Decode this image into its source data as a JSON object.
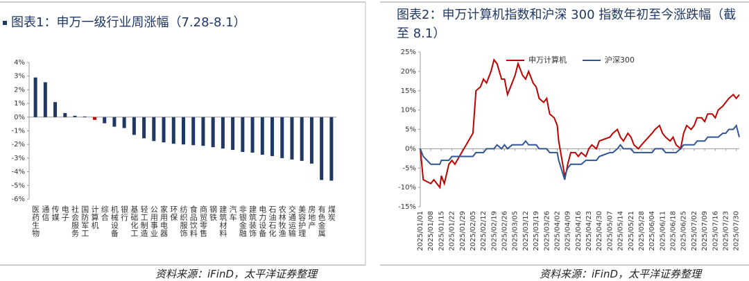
{
  "chart_data": [
    {
      "type": "bar",
      "title": "图表1：申万一级行业周涨幅（7.28-8.1）",
      "source": "资料来源：iFinD，太平洋证券整理",
      "categories": [
        "医药生物",
        "通信",
        "传媒",
        "电子",
        "社会服务",
        "国防军工",
        "计算机",
        "综合",
        "机械设备",
        "银行",
        "基础化工",
        "轻工制造",
        "公用事业",
        "家用电器",
        "环保",
        "纺织服饰",
        "食品饮料",
        "商贸零售",
        "钢铁",
        "建筑材料",
        "汽车",
        "非银金融",
        "建筑装饰",
        "电力设备",
        "石油石化",
        "农林牧渔",
        "交通运输",
        "美容护理",
        "房地产",
        "有色金属",
        "煤炭"
      ],
      "values": [
        2.9,
        2.55,
        1.1,
        0.3,
        0.1,
        0.05,
        -0.2,
        -0.45,
        -0.7,
        -0.8,
        -1.3,
        -1.55,
        -1.75,
        -1.85,
        -1.95,
        -2.0,
        -2.05,
        -2.1,
        -2.2,
        -2.3,
        -2.4,
        -2.55,
        -2.6,
        -2.75,
        -2.85,
        -3.0,
        -3.1,
        -3.2,
        -3.4,
        -4.6,
        -4.65
      ],
      "colors": [
        "#1f3864",
        "#1f3864",
        "#1f3864",
        "#1f3864",
        "#1f3864",
        "#1f3864",
        "#c00000",
        "#1f3864",
        "#1f3864",
        "#1f3864",
        "#1f3864",
        "#1f3864",
        "#1f3864",
        "#1f3864",
        "#1f3864",
        "#1f3864",
        "#1f3864",
        "#1f3864",
        "#1f3864",
        "#1f3864",
        "#1f3864",
        "#1f3864",
        "#1f3864",
        "#1f3864",
        "#1f3864",
        "#1f3864",
        "#1f3864",
        "#1f3864",
        "#1f3864",
        "#1f3864",
        "#1f3864"
      ],
      "ylim": [
        -6,
        4
      ],
      "yticks": [
        {
          "value": 4,
          "label": "4%"
        },
        {
          "value": 3,
          "label": "3%"
        },
        {
          "value": 2,
          "label": "2%"
        },
        {
          "value": 1,
          "label": "1%"
        },
        {
          "value": 0,
          "label": "0%"
        },
        {
          "value": -1,
          "label": "-1%"
        },
        {
          "value": -2,
          "label": "-2%"
        },
        {
          "value": -3,
          "label": "-3%"
        },
        {
          "value": -4,
          "label": "-4%"
        },
        {
          "value": -5,
          "label": "-5%"
        },
        {
          "value": -6,
          "label": "-6%"
        }
      ]
    },
    {
      "type": "line",
      "title": "图表2：申万计算机指数和沪深 300 指数年初至今涨跌幅（截至 8.1）",
      "source": "资料来源：iFinD，太平洋证券整理",
      "x": [
        "2025/01/01",
        "2025/01/03",
        "2025/01/08",
        "2025/01/10",
        "2025/01/14",
        "2025/01/15",
        "2025/01/17",
        "2025/01/20",
        "2025/01/22",
        "2025/01/24",
        "2025/01/27",
        "2025/02/05",
        "2025/02/07",
        "2025/02/10",
        "2025/02/12",
        "2025/02/14",
        "2025/02/17",
        "2025/02/19",
        "2025/02/21",
        "2025/02/24",
        "2025/02/26",
        "2025/02/28",
        "2025/03/03",
        "2025/03/05",
        "2025/03/07",
        "2025/03/10",
        "2025/03/12",
        "2025/03/14",
        "2025/03/17",
        "2025/03/19",
        "2025/03/21",
        "2025/03/24",
        "2025/03/26",
        "2025/03/28",
        "2025/03/31",
        "2025/04/02",
        "2025/04/03",
        "2025/04/07",
        "2025/04/08",
        "2025/04/09",
        "2025/04/11",
        "2025/04/14",
        "2025/04/16",
        "2025/04/18",
        "2025/04/21",
        "2025/04/23",
        "2025/04/25",
        "2025/04/28",
        "2025/04/30",
        "2025/05/07",
        "2025/05/09",
        "2025/05/12",
        "2025/05/14",
        "2025/05/16",
        "2025/05/19",
        "2025/05/21",
        "2025/05/23",
        "2025/05/26",
        "2025/05/28",
        "2025/06/04",
        "2025/06/06",
        "2025/06/09",
        "2025/06/11",
        "2025/06/13",
        "2025/06/16",
        "2025/06/18",
        "2025/06/20",
        "2025/06/23",
        "2025/06/25",
        "2025/06/27",
        "2025/06/30",
        "2025/07/02",
        "2025/07/04",
        "2025/07/07",
        "2025/07/09",
        "2025/07/11",
        "2025/07/14",
        "2025/07/16",
        "2025/07/18",
        "2025/07/21",
        "2025/07/23",
        "2025/07/25",
        "2025/07/28",
        "2025/07/30",
        "2025/08/01"
      ],
      "series": [
        {
          "name": "申万计算机",
          "color": "#c00000",
          "values": [
            0,
            -8,
            -9,
            -8,
            -10,
            -7,
            -9,
            -4,
            -3,
            -4,
            -2,
            4,
            15,
            16,
            18,
            17,
            20,
            23,
            22,
            18,
            18,
            14,
            17,
            19,
            22,
            19,
            18,
            20,
            17,
            16,
            13,
            12,
            13,
            9,
            8,
            6,
            2,
            -7,
            -6,
            -4,
            -1,
            -1,
            -2,
            -1,
            -2,
            0,
            1,
            0,
            2,
            3,
            4,
            5,
            3,
            2,
            4,
            3,
            1,
            0,
            1,
            4,
            5,
            6,
            4,
            3,
            2,
            3,
            1,
            0,
            4,
            6,
            5,
            6,
            8,
            8,
            7,
            9,
            9,
            8,
            10,
            11,
            12,
            13,
            14,
            13,
            14
          ]
        },
        {
          "name": "沪深300",
          "color": "#2f5597",
          "values": [
            0,
            -2,
            -4,
            -4,
            -4,
            -3,
            -3,
            -3,
            -2,
            -2,
            -2,
            -2,
            -1,
            -1,
            -1,
            0,
            0,
            0,
            1,
            0,
            1,
            0,
            1,
            1,
            1,
            1,
            2,
            1,
            1,
            1,
            0,
            0,
            0,
            -1,
            -1,
            -1,
            -3,
            -8,
            -6,
            -5,
            -4,
            -4,
            -4,
            -4,
            -3,
            -3,
            -3,
            -3,
            -2,
            -1,
            -1,
            0,
            1,
            0,
            0,
            0,
            -1,
            -1,
            -1,
            -1,
            0,
            0,
            0,
            -1,
            -1,
            -1,
            -1,
            0,
            1,
            1,
            1,
            1,
            2,
            2,
            2,
            3,
            3,
            3,
            3,
            4,
            4,
            5,
            5,
            6,
            3
          ]
        }
      ],
      "xlim": [
        "2025/01/01",
        "2025/08/01"
      ],
      "xticks": [
        "2025/01/01",
        "2025/01/08",
        "2025/01/15",
        "2025/01/22",
        "2025/01/29",
        "2025/02/05",
        "2025/02/12",
        "2025/02/19",
        "2025/02/26",
        "2025/03/05",
        "2025/03/12",
        "2025/03/19",
        "2025/03/26",
        "2025/04/02",
        "2025/04/09",
        "2025/04/16",
        "2025/04/23",
        "2025/04/30",
        "2025/05/07",
        "2025/05/14",
        "2025/05/21",
        "2025/05/28",
        "2025/06/04",
        "2025/06/11",
        "2025/06/18",
        "2025/06/25",
        "2025/07/02",
        "2025/07/09",
        "2025/07/16",
        "2025/07/23",
        "2025/07/30"
      ],
      "ylim": [
        -15,
        25
      ],
      "yticks": [
        {
          "value": 25,
          "label": "25%"
        },
        {
          "value": 20,
          "label": "20%"
        },
        {
          "value": 15,
          "label": "15%"
        },
        {
          "value": 10,
          "label": "10%"
        },
        {
          "value": 5,
          "label": "5%"
        },
        {
          "value": 0,
          "label": "0%"
        },
        {
          "value": -5,
          "label": "-5%"
        },
        {
          "value": -10,
          "label": "-10%"
        },
        {
          "value": -15,
          "label": "-15%"
        }
      ],
      "legend": "top"
    }
  ]
}
